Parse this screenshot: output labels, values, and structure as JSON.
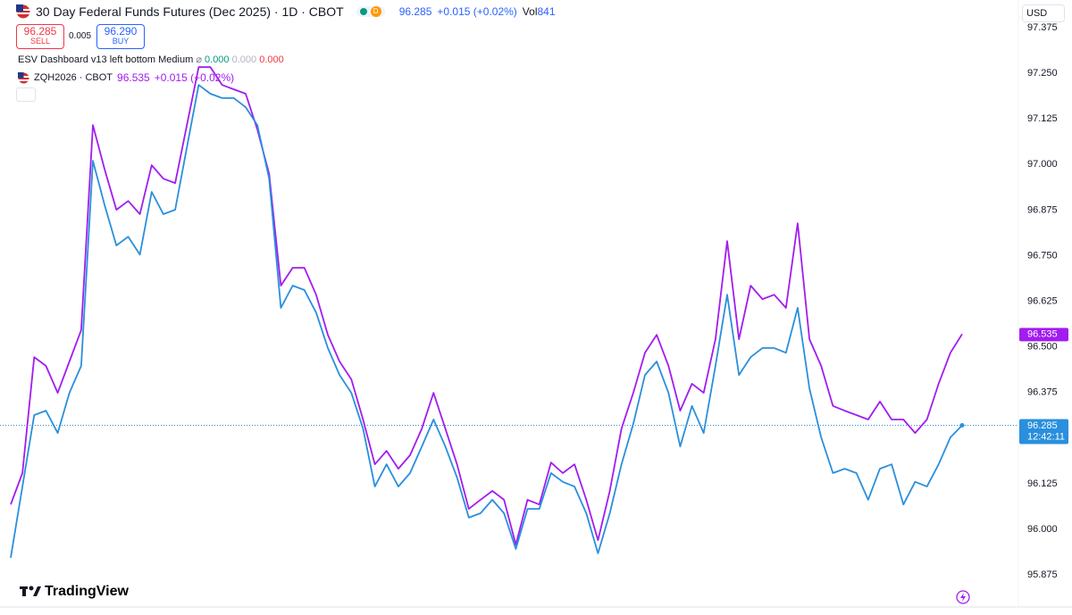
{
  "header": {
    "price": "96.285",
    "change": "+0.015 (+0.02%)",
    "vol_label": "Vol",
    "vol": "841",
    "badge": "D"
  },
  "trade": {
    "sell_price": "96.285",
    "sell": "SELL",
    "spread": "0.005",
    "buy_price": "96.290",
    "buy": "BUY"
  },
  "indicator": {
    "name": "ESV Dashboard v13 left bottom Medium",
    "values": [
      "0.000",
      "0.000",
      "0.000"
    ]
  },
  "compare": {
    "price": "96.535",
    "change": "+0.015 (+0.02%)"
  },
  "currency": "USD",
  "last_time": "12:42:11",
  "logo": "TradingView",
  "chart_data": {
    "type": "line",
    "ylim": [
      95.787,
      97.451
    ],
    "yticks": [
      {
        "value": 95.875,
        "label": "95.875"
      },
      {
        "value": 96,
        "label": "96.000"
      },
      96.125,
      96.375,
      {
        "value": 96.5,
        "label": "96.500"
      },
      96.625,
      {
        "value": 96.75,
        "label": "96.750"
      },
      96.875,
      {
        "value": 97,
        "label": "97.000"
      },
      97.125,
      {
        "value": 97.25,
        "label": "97.250"
      },
      97.375
    ],
    "grid": false,
    "series": [
      {
        "name": "30 Day Federal Funds Futures (Dec 2025) · 1D · CBOT",
        "color": "#2a8fdc",
        "values": [
          95.922,
          96.117,
          96.313,
          96.325,
          96.264,
          96.374,
          96.448,
          97.01,
          96.888,
          96.778,
          96.802,
          96.753,
          96.925,
          96.864,
          96.876,
          97.047,
          97.218,
          97.194,
          97.182,
          97.182,
          97.157,
          97.108,
          96.961,
          96.607,
          96.668,
          96.656,
          96.594,
          96.497,
          96.423,
          96.374,
          96.276,
          96.117,
          96.178,
          96.117,
          96.154,
          96.227,
          96.301,
          96.227,
          96.142,
          96.032,
          96.044,
          96.081,
          96.044,
          95.946,
          96.056,
          96.056,
          96.154,
          96.13,
          96.117,
          96.044,
          95.934,
          96.044,
          96.178,
          96.289,
          96.423,
          96.46,
          96.374,
          96.227,
          96.338,
          96.264,
          96.448,
          96.643,
          96.423,
          96.472,
          96.497,
          96.497,
          96.484,
          96.607,
          96.386,
          96.252,
          96.154,
          96.166,
          96.154,
          96.081,
          96.166,
          96.178,
          96.068,
          96.13,
          96.117,
          96.178,
          96.252,
          96.285
        ]
      },
      {
        "name": "ZQH2026 · CBOT",
        "color": "#a21cf0",
        "values": [
          96.068,
          96.154,
          96.472,
          96.448,
          96.374,
          96.46,
          96.546,
          97.108,
          96.986,
          96.876,
          96.9,
          96.864,
          96.998,
          96.961,
          96.949,
          97.108,
          97.267,
          97.267,
          97.218,
          97.206,
          97.194,
          97.096,
          96.974,
          96.668,
          96.717,
          96.717,
          96.643,
          96.533,
          96.46,
          96.411,
          96.301,
          96.178,
          96.215,
          96.166,
          96.203,
          96.276,
          96.374,
          96.276,
          96.178,
          96.056,
          96.081,
          96.105,
          96.081,
          95.958,
          96.081,
          96.068,
          96.183,
          96.154,
          96.178,
          96.081,
          95.97,
          96.105,
          96.276,
          96.374,
          96.484,
          96.533,
          96.448,
          96.325,
          96.399,
          96.374,
          96.521,
          96.79,
          96.521,
          96.668,
          96.631,
          96.643,
          96.607,
          96.839,
          96.521,
          96.448,
          96.338,
          96.325,
          96.313,
          96.301,
          96.35,
          96.301,
          96.301,
          96.264,
          96.301,
          96.399,
          96.484,
          96.535
        ]
      }
    ]
  }
}
